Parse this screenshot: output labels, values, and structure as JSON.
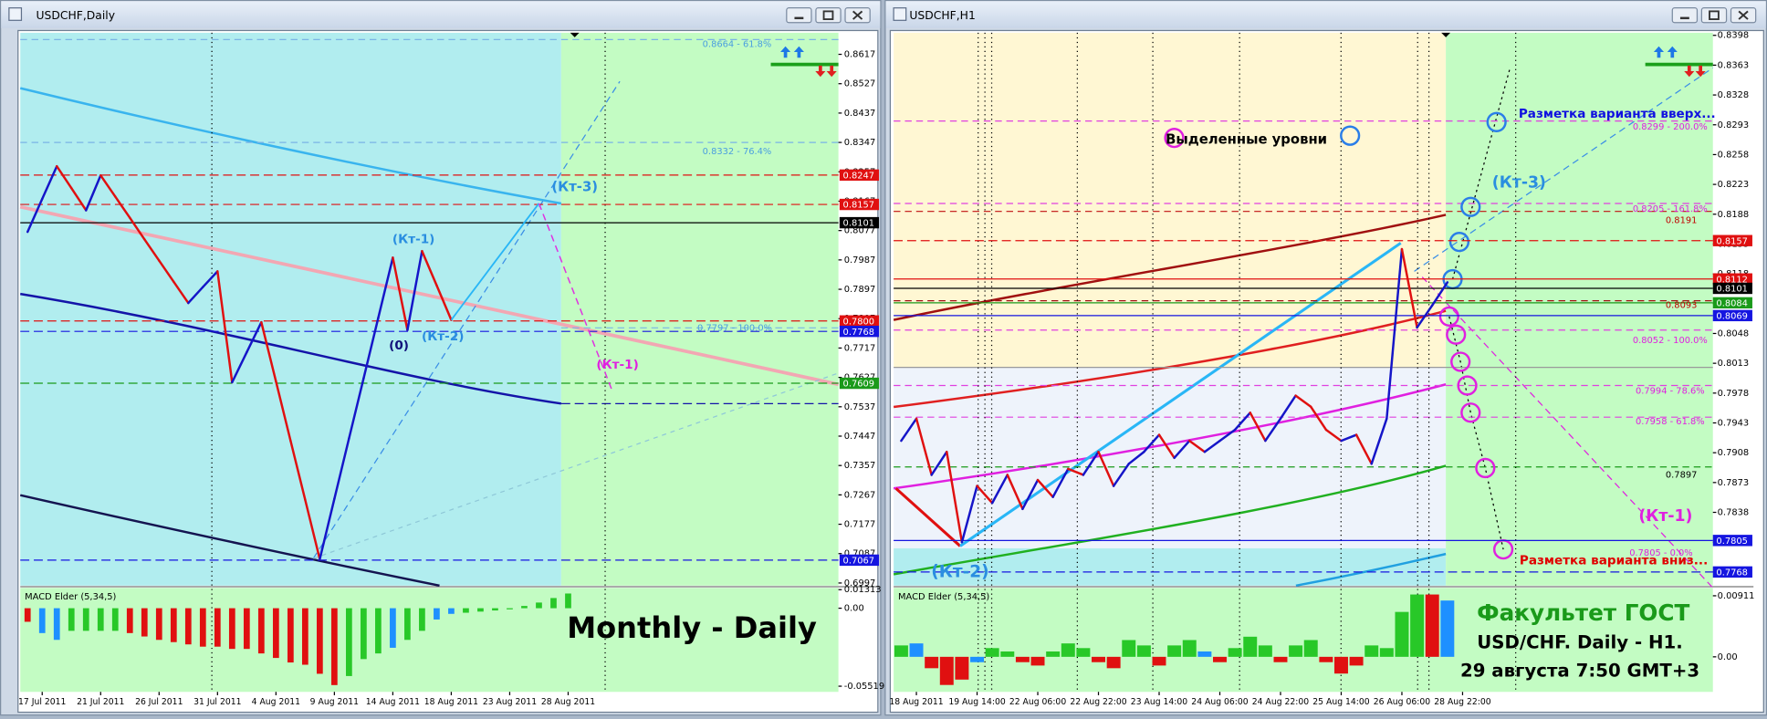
{
  "chart_data": [
    {
      "window_title": "USDCHF,Daily",
      "type": "line",
      "categories": [
        null,
        "17 Jul 2011",
        null,
        null,
        null,
        "21 Jul 2011",
        null,
        null,
        null,
        "26 Jul 2011",
        null,
        null,
        null,
        "31 Jul 2011",
        null,
        null,
        null,
        "4 Aug 2011",
        null,
        null,
        null,
        "9 Aug 2011",
        null,
        null,
        null,
        "14 Aug 2011",
        null,
        null,
        null,
        "18 Aug 2011",
        null,
        null,
        null,
        "23 Aug 2011",
        null,
        null,
        null,
        "28 Aug 2011",
        null,
        null,
        null,
        null,
        null,
        null,
        null,
        null,
        null,
        null,
        null,
        null,
        null,
        null,
        null,
        null,
        null,
        null
      ],
      "ylim": [
        0.6989,
        0.8683
      ],
      "yticks": [
        0.8617,
        0.8527,
        0.8437,
        0.8347,
        0.8257,
        0.8167,
        0.8077,
        0.7987,
        0.7897,
        0.7807,
        0.7717,
        0.7627,
        0.7537,
        0.7447,
        0.7357,
        0.7267,
        0.7177,
        0.7087,
        0.6997
      ],
      "up_color": "#1515c8",
      "down_color": "#e01010",
      "series": [
        {
          "style": "zigzag",
          "values": [
            0.8073,
            0.8174,
            0.8274,
            0.8207,
            0.8139,
            0.8246,
            0.8181,
            0.8116,
            0.805,
            0.7985,
            0.792,
            0.7855,
            0.7904,
            0.7952,
            0.7612,
            0.7704,
            0.7796,
            0.7615,
            0.7433,
            0.7252,
            0.707,
            0.7255,
            0.744,
            0.7624,
            0.7809,
            0.7994,
            0.7772,
            0.8014,
            0.7909,
            0.7803,
            null,
            null,
            null,
            null,
            null,
            null,
            null,
            null,
            null,
            null,
            null,
            null,
            null,
            null,
            null,
            null,
            null,
            null,
            null,
            null,
            null,
            null,
            null,
            null,
            null,
            null
          ]
        },
        {
          "color": "#29b6f6",
          "values": [
            null,
            null,
            null,
            null,
            null,
            null,
            null,
            null,
            null,
            null,
            null,
            null,
            null,
            null,
            null,
            null,
            null,
            null,
            null,
            null,
            null,
            null,
            null,
            null,
            null,
            null,
            null,
            null,
            null,
            0.7803,
            0.7863,
            0.7922,
            0.7982,
            0.8041,
            0.8101,
            0.816,
            null,
            null,
            null,
            null,
            null,
            null,
            null,
            null,
            null,
            null,
            null,
            null,
            null,
            null,
            null,
            null,
            null,
            null,
            null,
            null
          ]
        },
        {
          "color": "#e030e0",
          "dash": true,
          "values": [
            null,
            null,
            null,
            null,
            null,
            null,
            null,
            null,
            null,
            null,
            null,
            null,
            null,
            null,
            null,
            null,
            null,
            null,
            null,
            null,
            null,
            null,
            null,
            null,
            null,
            null,
            null,
            null,
            null,
            null,
            null,
            null,
            null,
            null,
            null,
            0.816,
            0.8046,
            0.7931,
            0.7817,
            0.7702,
            0.7588,
            null,
            null,
            null,
            null,
            null,
            null,
            null,
            null,
            null,
            null,
            null,
            null,
            null,
            null,
            null
          ]
        }
      ],
      "price_tags": [
        {
          "value": 0.8247,
          "color": "#e01010",
          "dash": true
        },
        {
          "value": 0.8157,
          "color": "#e01010",
          "dash": true
        },
        {
          "value": 0.8101,
          "color": "#000000",
          "dash": false
        },
        {
          "value": 0.78,
          "label": "0.7800",
          "color": "#e01010",
          "dash": true
        },
        {
          "value": 0.7768,
          "color": "#1515e0",
          "dash": true
        },
        {
          "value": 0.7609,
          "color": "#1a9a1a",
          "dash": true
        },
        {
          "value": 0.7067,
          "color": "#1515e0",
          "dash": true
        }
      ],
      "annotations": [
        {
          "text": "(Кт-3)",
          "color": "#2a8ee0"
        },
        {
          "text": "(Кт-1)",
          "color": "#2a8ee0"
        },
        {
          "text": "(0)",
          "color": "#10107a"
        },
        {
          "text": "(Кт-2)",
          "color": "#2a8ee0"
        },
        {
          "text": "(Кт-1)",
          "color": "#e020e0"
        },
        {
          "text": "0.8664 - 61.8%",
          "color": "#4a9ee0"
        },
        {
          "text": "0.8332 - 76.4%",
          "color": "#4a9ee0"
        },
        {
          "text": "0.7797 - 100.0%",
          "color": "#4a9ee0"
        },
        {
          "text": "Monthly - Daily",
          "color": "#000000"
        }
      ]
    },
    {
      "type": "bar",
      "title": "MACD Elder (5,34,5)",
      "ylim": [
        -0.0592,
        0.0144
      ],
      "yticks": [
        0.01313,
        {
          "value": 0,
          "label": "0.00"
        },
        -0.05519
      ],
      "values": [
        -0.0096,
        -0.0176,
        -0.0224,
        -0.016,
        -0.016,
        -0.016,
        -0.016,
        -0.0176,
        -0.02,
        -0.0224,
        -0.024,
        -0.0256,
        -0.0272,
        -0.0272,
        -0.0288,
        -0.0288,
        -0.032,
        -0.0352,
        -0.0384,
        -0.04,
        -0.0464,
        -0.0544,
        -0.048,
        -0.036,
        -0.032,
        -0.028,
        -0.0224,
        -0.016,
        -0.008,
        -0.004,
        -0.0032,
        -0.0024,
        -0.0016,
        -0.0008,
        0.0016,
        0.004,
        0.0072,
        0.0104
      ],
      "colors": [
        "#e01010",
        "#1e90ff",
        "#1e90ff",
        "#28c828",
        "#28c828",
        "#28c828",
        "#28c828",
        "#e01010",
        "#e01010",
        "#e01010",
        "#e01010",
        "#e01010",
        "#e01010",
        "#e01010",
        "#e01010",
        "#e01010",
        "#e01010",
        "#e01010",
        "#e01010",
        "#e01010",
        "#e01010",
        "#e01010",
        "#28c828",
        "#28c828",
        "#28c828",
        "#1e90ff",
        "#28c828",
        "#28c828",
        "#1e90ff",
        "#1e90ff",
        "#28c828",
        "#28c828",
        "#28c828",
        "#28c828",
        "#28c828",
        "#28c828",
        "#28c828",
        "#28c828"
      ]
    },
    {
      "window_title": "USDCHF,H1",
      "type": "line",
      "categories": [
        null,
        "18 Aug 2011",
        null,
        null,
        null,
        "19 Aug 14:00",
        null,
        null,
        null,
        "22 Aug 06:00",
        null,
        null,
        null,
        "22 Aug 22:00",
        null,
        null,
        null,
        "23 Aug 14:00",
        null,
        null,
        null,
        "24 Aug 06:00",
        null,
        null,
        null,
        "24 Aug 22:00",
        null,
        null,
        null,
        "25 Aug 14:00",
        null,
        null,
        null,
        "26 Aug 06:00",
        null,
        null,
        null,
        "28 Aug 22:00",
        null,
        null,
        null,
        null,
        null,
        null,
        null,
        null,
        null,
        null,
        null,
        null,
        null,
        null,
        null,
        null
      ],
      "ylim": [
        0.7752,
        0.8401
      ],
      "yticks": [
        0.8398,
        0.8363,
        0.8328,
        0.8293,
        0.8258,
        0.8223,
        0.8188,
        0.8153,
        0.8118,
        0.8083,
        0.8048,
        0.8013,
        0.7978,
        0.7943,
        0.7908,
        0.7873,
        0.7838,
        0.7803,
        0.7768
      ],
      "up_color": "#1515c8",
      "down_color": "#e01010",
      "series": [
        {
          "style": "zigzag",
          "values": [
            0.7922,
            0.7948,
            0.7882,
            0.7909,
            0.7803,
            0.7869,
            0.7849,
            0.7882,
            0.7842,
            0.7876,
            0.7856,
            0.7889,
            0.7882,
            0.7909,
            0.7869,
            0.7895,
            0.7909,
            0.7929,
            0.7902,
            0.7922,
            0.7909,
            0.7922,
            0.7935,
            0.7955,
            0.7922,
            0.7948,
            0.7975,
            0.7962,
            0.7935,
            0.7922,
            0.7929,
            0.7895,
            0.7948,
            0.8147,
            0.8055,
            0.8081,
            0.8108,
            null,
            null,
            null,
            null,
            null,
            null,
            null,
            null,
            null,
            null,
            null,
            null,
            null,
            null,
            null,
            null,
            null
          ]
        }
      ],
      "price_tags": [
        {
          "value": 0.8157,
          "color": "#e01010",
          "dash": true
        },
        {
          "value": 0.8112,
          "color": "#e01010",
          "dash": false
        },
        {
          "value": 0.8101,
          "color": "#000000",
          "dash": false
        },
        {
          "value": 0.8084,
          "color": "#1a9a1a",
          "dash": false
        },
        {
          "value": 0.8069,
          "color": "#1515e0",
          "dash": false
        },
        {
          "value": 0.7805,
          "color": "#1515e0",
          "dash": false
        },
        {
          "value": 0.7768,
          "color": "#1515e0",
          "dash": true
        }
      ],
      "annotations": [
        {
          "text": "Выделенные уровни",
          "color": "#000000"
        },
        {
          "text": "Разметка варианта вверх...",
          "color": "#1010e0"
        },
        {
          "text": "0.8299 - 200.0%",
          "color": "#e020e0"
        },
        {
          "text": "(Кт-3)",
          "color": "#2a8ee0"
        },
        {
          "text": "0.8205 - 161.8%",
          "color": "#e020e0"
        },
        {
          "text": "0.8191",
          "color": "#c00000"
        },
        {
          "text": "0.8093",
          "color": "#c00000"
        },
        {
          "text": "0.8052 - 100.0%",
          "color": "#e020e0"
        },
        {
          "text": "0.7994 - 78.6%",
          "color": "#e020e0"
        },
        {
          "text": "0.7958 - 61.8%",
          "color": "#e020e0"
        },
        {
          "text": "0.7897",
          "color": "#000000"
        },
        {
          "text": "(Кт-1)",
          "color": "#e020e0"
        },
        {
          "text": "0.7805 - 0.0%",
          "color": "#e020e0"
        },
        {
          "text": "Разметка варианта вниз...",
          "color": "#e00000"
        },
        {
          "text": "(Кт-2)",
          "color": "#2a8ee0"
        },
        {
          "text": "Факультет ГОСТ",
          "color": "#1a9a1a"
        },
        {
          "text": "USD/CHF. Daily - H1.",
          "color": "#000000"
        },
        {
          "text": "29 августа 7:50 GMT+3",
          "color": "#000000"
        }
      ]
    },
    {
      "type": "bar",
      "title": "MACD Elder (5,34,5)",
      "ylim": [
        -0.00523,
        0.01029
      ],
      "yticks": [
        0.00911,
        {
          "value": 0,
          "label": "0.00"
        }
      ],
      "values": [
        0.0017,
        0.002,
        -0.0017,
        -0.0042,
        -0.0034,
        -0.0008,
        0.0013,
        0.0008,
        -0.0008,
        -0.0013,
        0.0008,
        0.002,
        0.0013,
        -0.0008,
        -0.0017,
        0.0025,
        0.0017,
        -0.0013,
        0.0017,
        0.0025,
        0.0008,
        -0.0008,
        0.0013,
        0.003,
        0.0017,
        -0.0008,
        0.0017,
        0.0025,
        -0.0008,
        -0.0025,
        -0.0013,
        0.0017,
        0.0013,
        0.0067,
        0.0093,
        0.0093,
        0.0084
      ],
      "colors": [
        "#28c828",
        "#1e90ff",
        "#e01010",
        "#e01010",
        "#e01010",
        "#1e90ff",
        "#28c828",
        "#28c828",
        "#e01010",
        "#e01010",
        "#28c828",
        "#28c828",
        "#28c828",
        "#e01010",
        "#e01010",
        "#28c828",
        "#28c828",
        "#e01010",
        "#28c828",
        "#28c828",
        "#1e90ff",
        "#e01010",
        "#28c828",
        "#28c828",
        "#28c828",
        "#e01010",
        "#28c828",
        "#28c828",
        "#e01010",
        "#e01010",
        "#e01010",
        "#28c828",
        "#28c828",
        "#28c828",
        "#28c828",
        "#e01010",
        "#1e90ff"
      ]
    }
  ]
}
